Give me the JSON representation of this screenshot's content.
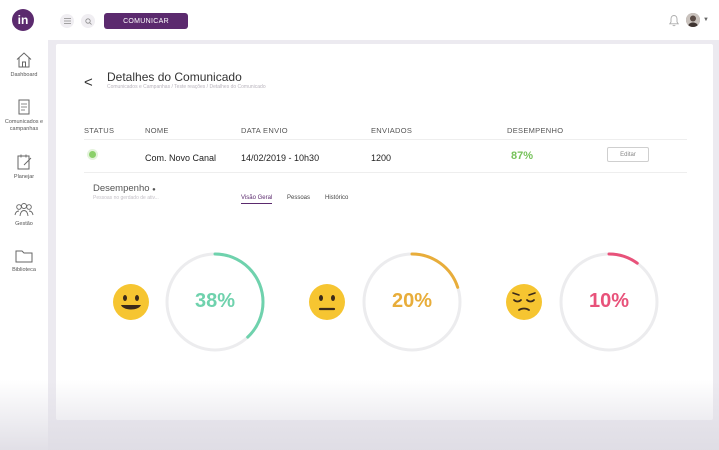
{
  "header": {
    "logo_text": "in",
    "comunicar_label": "COMUNICAR"
  },
  "sidebar": {
    "items": [
      {
        "label": "Dashboard"
      },
      {
        "label": "Comunicados e campanhas"
      },
      {
        "label": "Planejar"
      },
      {
        "label": "Gestão"
      },
      {
        "label": "Biblioteca"
      }
    ]
  },
  "page": {
    "back": "<",
    "title": "Detalhes do Comunicado",
    "breadcrumb": "Comunicados e Campanhas / Teste reações / Detalhes do Comunicado"
  },
  "table": {
    "headers": {
      "status": "STATUS",
      "nome": "NOME",
      "data_envio": "DATA ENVIO",
      "enviados": "ENVIADOS",
      "desempenho": "DESEMPENHO"
    },
    "row": {
      "status_color": "#8bd06a",
      "nome": "Com. Novo Canal",
      "data_envio": "14/02/2019 - 10h30",
      "enviados": "1200",
      "desempenho": "87%",
      "edit_label": "Editar"
    }
  },
  "performance": {
    "title": "Desempenho",
    "subtitle": "Pessoas no gerdado de ativ...",
    "tabs": [
      {
        "label": "Visão Geral",
        "active": true
      },
      {
        "label": "Pessoas",
        "active": false
      },
      {
        "label": "Histórico",
        "active": false
      }
    ],
    "gauges": [
      {
        "label": "38%",
        "value": 0.38,
        "color": "#6fd2ad",
        "emoji": "happy-emoji"
      },
      {
        "label": "20%",
        "value": 0.2,
        "color": "#e8ad3a",
        "emoji": "neutral-emoji"
      },
      {
        "label": "10%",
        "value": 0.1,
        "color": "#e8527a",
        "emoji": "relieved-emoji"
      }
    ]
  }
}
